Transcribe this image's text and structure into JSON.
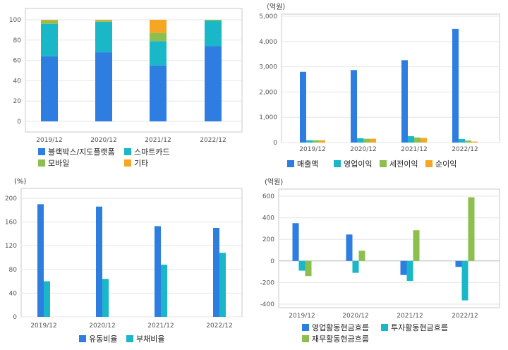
{
  "colors": {
    "blue": "#2e7de1",
    "teal": "#19b7c8",
    "green": "#8dbf4f",
    "orange": "#f5a623",
    "grid": "#e6e6e6",
    "frame": "#c8c8c8"
  },
  "chart_data": [
    {
      "type": "bar",
      "stacked": true,
      "categories": [
        "2019/12",
        "2020/12",
        "2021/12",
        "2022/12"
      ],
      "yticks": [
        "0",
        "20",
        "40",
        "60",
        "80",
        "100"
      ],
      "ylim": [
        0,
        100
      ],
      "unit": "",
      "series": [
        {
          "name": "블랙박스/지도플랫폼",
          "color": "#2e7de1",
          "values": [
            64,
            68,
            55,
            74
          ]
        },
        {
          "name": "스마트카드",
          "color": "#19b7c8",
          "values": [
            32,
            30,
            24,
            25
          ]
        },
        {
          "name": "모바일",
          "color": "#8dbf4f",
          "values": [
            3,
            1,
            8,
            1
          ]
        },
        {
          "name": "기타",
          "color": "#f5a623",
          "values": [
            1,
            1,
            13,
            0
          ]
        }
      ]
    },
    {
      "type": "bar",
      "categories": [
        "2019/12",
        "2020/12",
        "2021/12",
        "2022/12"
      ],
      "yticks": [
        "0",
        "1,000",
        "2,000",
        "3,000",
        "4,000",
        "5,000"
      ],
      "ylim": [
        0,
        5000
      ],
      "unit": "（억원）",
      "series": [
        {
          "name": "매출액",
          "color": "#2e7de1",
          "values": [
            2800,
            2870,
            3260,
            4500
          ]
        },
        {
          "name": "영업이익",
          "color": "#19b7c8",
          "values": [
            90,
            170,
            250,
            140
          ]
        },
        {
          "name": "세전이익",
          "color": "#8dbf4f",
          "values": [
            90,
            150,
            200,
            80
          ]
        },
        {
          "name": "순이익",
          "color": "#f5a623",
          "values": [
            90,
            150,
            180,
            40
          ]
        }
      ]
    },
    {
      "type": "bar",
      "categories": [
        "2019/12",
        "2020/12",
        "2021/12",
        "2022/12"
      ],
      "yticks": [
        "0",
        "40",
        "80",
        "120",
        "160",
        "200"
      ],
      "ylim": [
        0,
        200
      ],
      "unit": "(%)",
      "series": [
        {
          "name": "유동비율",
          "color": "#2e7de1",
          "values": [
            190,
            186,
            153,
            150
          ]
        },
        {
          "name": "부채비율",
          "color": "#19b7c8",
          "values": [
            60,
            64,
            88,
            108
          ]
        }
      ]
    },
    {
      "type": "bar",
      "categories": [
        "2019/12",
        "2020/12",
        "2021/12",
        "2022/12"
      ],
      "yticks": [
        "-400",
        "-200",
        "0",
        "200",
        "400",
        "600"
      ],
      "ylim": [
        -400,
        600
      ],
      "unit": "(억원)",
      "series": [
        {
          "name": "영업활동현금흐름",
          "color": "#2e7de1",
          "values": [
            350,
            245,
            -130,
            -55
          ]
        },
        {
          "name": "투자활동현금흐름",
          "color": "#19b7c8",
          "values": [
            -90,
            -110,
            -185,
            -365
          ]
        },
        {
          "name": "재무활동현금흐름",
          "color": "#8dbf4f",
          "values": [
            -140,
            95,
            285,
            590
          ]
        }
      ]
    }
  ]
}
